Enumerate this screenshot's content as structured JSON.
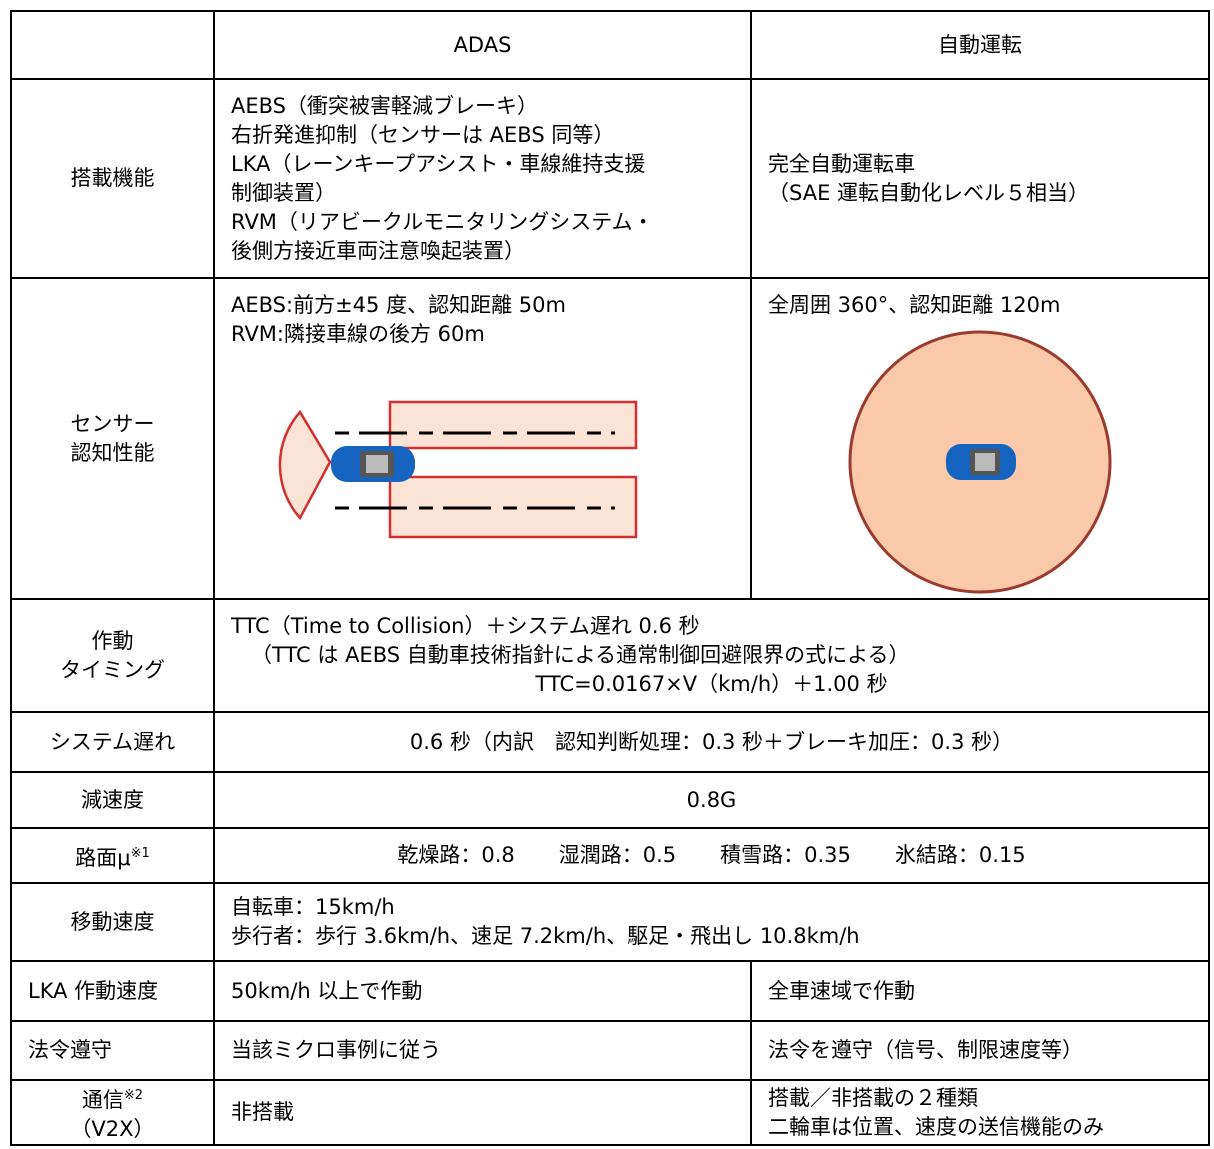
{
  "table": {
    "header": {
      "adas": "ADAS",
      "auto": "自動運転"
    },
    "rows": [
      {
        "label": [
          "搭載機能"
        ],
        "adas": [
          "AEBS（衝突被害軽減ブレーキ）",
          "右折発進抑制（センサーは AEBS 同等）",
          "LKA（レーンキープアシスト・車線維持支援",
          "制御装置）",
          "RVM（リアビークルモニタリングシステム・",
          "後側方接近車両注意喚起装置）"
        ],
        "auto": [
          "完全自動運転車",
          "（SAE 運転自動化レベル５相当）"
        ]
      },
      {
        "label": [
          "センサー",
          "認知性能"
        ],
        "adas": [
          "AEBS:前方±45 度、認知距離 50m",
          "RVM:隣接車線の後方 60m"
        ],
        "auto": [
          "全周囲 360°、認知距離 120m"
        ]
      },
      {
        "label": [
          "作動",
          "タイミング"
        ],
        "both": [
          "TTC（Time to Collision）＋システム遅れ 0.6 秒",
          "（TTC は AEBS 自動車技術指針による通常制御回避限界の式による）",
          "TTC=0.0167×V（km/h）＋1.00 秒"
        ]
      },
      {
        "label": [
          "システム遅れ"
        ],
        "both": [
          "0.6 秒（内訳　認知判断処理：0.3 秒＋ブレーキ加圧：0.3 秒）"
        ]
      },
      {
        "label": [
          "減速度"
        ],
        "both": [
          "0.8G"
        ]
      },
      {
        "label": [
          "路面μ"
        ],
        "note": "※1",
        "both": [
          "乾燥路：0.8",
          "湿潤路：0.5",
          "積雪路：0.35",
          "氷結路：0.15"
        ]
      },
      {
        "label": [
          "移動速度"
        ],
        "both": [
          "自転車：15km/h",
          "歩行者：歩行 3.6km/h、速足 7.2km/h、駆足・飛出し 10.8km/h"
        ]
      },
      {
        "label": [
          "LKA 作動速度"
        ],
        "adas": [
          "50km/h 以上で作動"
        ],
        "auto": [
          "全車速域で作動"
        ]
      },
      {
        "label": [
          "法令遵守"
        ],
        "adas": [
          "当該ミクロ事例に従う"
        ],
        "auto": [
          "法令を遵守（信号、制限速度等）"
        ]
      },
      {
        "label": [
          "通信",
          "（V2X）"
        ],
        "note": "※2",
        "adas": [
          "非搭載"
        ],
        "auto": [
          "搭載／非搭載の２種類",
          "二輪車は位置、速度の送信機能のみ"
        ]
      }
    ]
  }
}
